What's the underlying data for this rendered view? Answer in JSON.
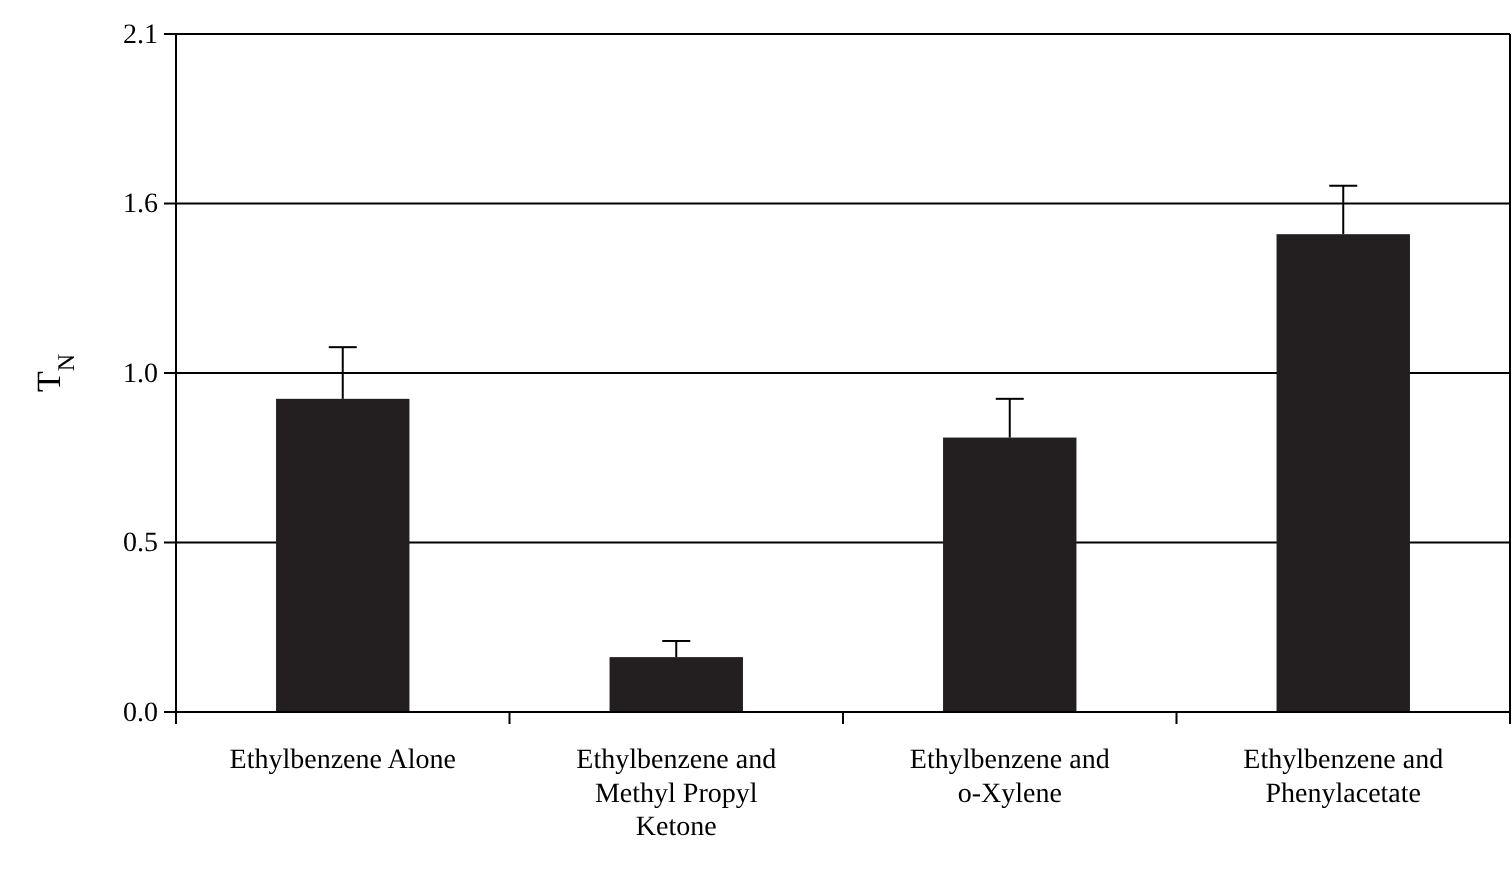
{
  "chart_data": {
    "type": "bar",
    "ylabel": "T$_{N}$",
    "categories": [
      "Ethylbenzene Alone",
      "Ethylbenzene and Methyl Propyl Ketone",
      "Ethylbenzene and o-Xylene",
      "Ethylbenzene and Phenylacetate"
    ],
    "values": [
      0.97,
      0.17,
      0.85,
      1.48
    ],
    "errors": [
      [
        0.97,
        1.13
      ],
      [
        0.17,
        0.22
      ],
      [
        0.85,
        0.97
      ],
      [
        1.48,
        1.63
      ]
    ],
    "color": "#231f20",
    "ylim": [
      0,
      2.1
    ],
    "yticks": [
      {
        "value": 0,
        "label": "0.0"
      },
      {
        "value": 0.525,
        "label": "0.5"
      },
      {
        "value": 1.05,
        "label": "1.0"
      },
      {
        "value": 1.575,
        "label": "1.6"
      },
      {
        "value": 2.1,
        "label": "2.1"
      }
    ],
    "grid": "y"
  }
}
